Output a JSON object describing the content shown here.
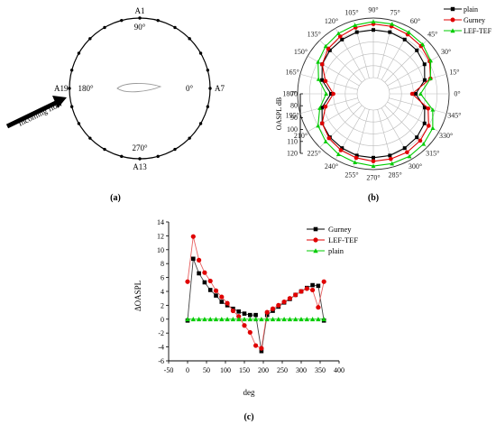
{
  "chart_data": [
    {
      "panel": "(a)",
      "type": "diagram",
      "labels": {
        "top_point": "A1",
        "top_angle": "90°",
        "right_point": "A7",
        "right_angle": "0°",
        "bottom_point": "A13",
        "bottom_angle": "270°",
        "left_point": "A19",
        "left_angle": "180°",
        "arrow_label": "Incoming flow"
      },
      "points_count": 24
    },
    {
      "panel": "(b)",
      "type": "polar-line",
      "axis_label": "OASPL dB",
      "radial_ticks": [
        70,
        80,
        90,
        100,
        110,
        120
      ],
      "angle_ticks": [
        "0°",
        "15°",
        "30°",
        "45°",
        "60°",
        "75°",
        "90°",
        "105°",
        "120°",
        "135°",
        "150°",
        "165°",
        "180°",
        "195°",
        "210°",
        "225°",
        "240°",
        "255°",
        "270°",
        "285°",
        "300°",
        "315°",
        "330°",
        "345°"
      ],
      "angles": [
        0,
        15,
        30,
        45,
        60,
        75,
        90,
        105,
        120,
        135,
        150,
        165,
        180,
        195,
        210,
        225,
        240,
        255,
        270,
        285,
        300,
        315,
        330,
        345
      ],
      "series": [
        {
          "name": "plain",
          "color": "#000000",
          "marker": "square",
          "values": [
            92,
            101,
            106,
            108,
            109,
            110,
            110,
            110,
            109,
            108,
            106,
            101,
            92,
            101,
            106,
            108,
            109,
            110,
            110,
            110,
            109,
            108,
            106,
            101
          ]
        },
        {
          "name": "Gurney",
          "color": "#e00000",
          "marker": "circle",
          "values": [
            89,
            106,
            111,
            113,
            114,
            115,
            115,
            114,
            112,
            110,
            106,
            98,
            90,
            98,
            106,
            109,
            111,
            112,
            113,
            113,
            113,
            112,
            110,
            104
          ]
        },
        {
          "name": "LEF-TEF",
          "color": "#00cc00",
          "marker": "triangle",
          "values": [
            96,
            106,
            112,
            115,
            116,
            117,
            117,
            116,
            115,
            113,
            110,
            104,
            96,
            103,
            110,
            113,
            115,
            116,
            117,
            117,
            117,
            116,
            114,
            108
          ]
        }
      ]
    },
    {
      "panel": "(c)",
      "type": "line",
      "xlabel": "deg",
      "ylabel": "ΔOASPL",
      "xlim": [
        -50,
        400
      ],
      "ylim": [
        -6,
        14
      ],
      "xticks": [
        -50,
        0,
        50,
        100,
        150,
        200,
        250,
        300,
        350,
        400
      ],
      "yticks": [
        -6,
        -4,
        -2,
        0,
        2,
        4,
        6,
        8,
        10,
        12,
        14
      ],
      "x": [
        0,
        15,
        30,
        45,
        60,
        75,
        90,
        105,
        120,
        135,
        150,
        165,
        180,
        195,
        210,
        225,
        240,
        255,
        270,
        285,
        300,
        315,
        330,
        345,
        360
      ],
      "series": [
        {
          "name": "Gurney",
          "color": "#000000",
          "marker": "square",
          "values": [
            -0.2,
            8.7,
            6.6,
            5.3,
            4.2,
            3.4,
            2.5,
            2.0,
            1.5,
            1.1,
            0.8,
            0.6,
            0.6,
            -4.6,
            0.6,
            1.2,
            1.8,
            2.4,
            2.9,
            3.5,
            4.0,
            4.5,
            4.9,
            4.8,
            -0.2
          ]
        },
        {
          "name": "LEF-TEF",
          "color": "#e00000",
          "marker": "circle",
          "values": [
            5.4,
            11.9,
            8.5,
            6.7,
            5.5,
            4.1,
            3.2,
            2.3,
            1.2,
            0.4,
            -0.9,
            -1.9,
            -3.8,
            -4.2,
            1.0,
            1.5,
            2.0,
            2.5,
            3.0,
            3.5,
            4.0,
            4.4,
            4.2,
            1.7,
            5.4
          ]
        },
        {
          "name": "plain",
          "color": "#00cc00",
          "marker": "triangle",
          "values": [
            0,
            0,
            0,
            0,
            0,
            0,
            0,
            0,
            0,
            0,
            0,
            0,
            0,
            0,
            0,
            0,
            0,
            0,
            0,
            0,
            0,
            0,
            0,
            0,
            0
          ]
        }
      ]
    }
  ],
  "captions": {
    "a": "(a)",
    "b": "(b)",
    "c": "(c)"
  }
}
